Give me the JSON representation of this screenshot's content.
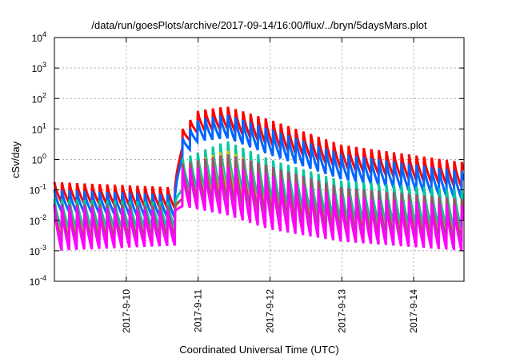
{
  "chart_data": {
    "type": "line",
    "title": "/data/run/goesPlots/archive/2017-09-14/16:00/flux/../bryn/5daysMars.plot",
    "xlabel": "Coordinated Universal Time (UTC)",
    "ylabel": "cSv/day",
    "yscale": "log",
    "ylim": [
      0.0001,
      10000
    ],
    "y_ticks": [
      {
        "base": "10",
        "exp": "4",
        "value": 10000
      },
      {
        "base": "10",
        "exp": "3",
        "value": 1000
      },
      {
        "base": "10",
        "exp": "2",
        "value": 100
      },
      {
        "base": "10",
        "exp": "1",
        "value": 10
      },
      {
        "base": "10",
        "exp": "0",
        "value": 1
      },
      {
        "base": "10",
        "exp": "-1",
        "value": 0.1
      },
      {
        "base": "10",
        "exp": "-2",
        "value": 0.01
      },
      {
        "base": "10",
        "exp": "-3",
        "value": 0.001
      },
      {
        "base": "10",
        "exp": "-4",
        "value": 0.0001
      }
    ],
    "x_unit": "days since 2017-09-09 00:00 UTC",
    "xlim": [
      0,
      5.7
    ],
    "x_ticks": [
      {
        "label": "2017-9-10",
        "value": 1
      },
      {
        "label": "2017-9-11",
        "value": 2
      },
      {
        "label": "2017-9-12",
        "value": 3
      },
      {
        "label": "2017-9-13",
        "value": 4
      },
      {
        "label": "2017-9-14",
        "value": 5
      }
    ],
    "grid": true,
    "sawtooth_cycle_days": 0.105,
    "series": [
      {
        "name": "series-red",
        "color": "#ff0000",
        "envelope": [
          [
            0,
            0.18,
            0.04
          ],
          [
            1.7,
            0.12,
            0.025
          ],
          [
            1.75,
            8,
            2
          ],
          [
            2.0,
            40,
            8
          ],
          [
            2.4,
            55,
            10
          ],
          [
            3.0,
            20,
            3
          ],
          [
            4.0,
            3,
            0.5
          ],
          [
            5.7,
            0.8,
            0.12
          ]
        ]
      },
      {
        "name": "series-blue",
        "color": "#0066ff",
        "envelope": [
          [
            0,
            0.1,
            0.02
          ],
          [
            1.7,
            0.07,
            0.012
          ],
          [
            1.75,
            4,
            1
          ],
          [
            2.0,
            20,
            4
          ],
          [
            2.4,
            30,
            5
          ],
          [
            3.0,
            10,
            1.4
          ],
          [
            4.0,
            1.5,
            0.22
          ],
          [
            5.7,
            0.4,
            0.05
          ]
        ]
      },
      {
        "name": "series-green",
        "color": "#00c8a0",
        "envelope": [
          [
            0,
            0.05,
            0.005
          ],
          [
            1.7,
            0.04,
            0.006
          ],
          [
            1.75,
            1,
            0.1
          ],
          [
            2.4,
            4,
            0.12
          ],
          [
            3.0,
            1,
            0.04
          ],
          [
            4.0,
            0.2,
            0.01
          ],
          [
            5.7,
            0.1,
            0.005
          ]
        ]
      },
      {
        "name": "series-yellow",
        "color": "#e0c000",
        "envelope": [
          [
            0,
            0.03,
            0.003
          ],
          [
            1.7,
            0.025,
            0.003
          ],
          [
            1.75,
            0.6,
            0.05
          ],
          [
            2.4,
            2,
            0.06
          ],
          [
            3.0,
            0.5,
            0.02
          ],
          [
            4.0,
            0.1,
            0.005
          ],
          [
            5.7,
            0.05,
            0.0025
          ]
        ]
      },
      {
        "name": "series-brown",
        "color": "#a05070",
        "envelope": [
          [
            0,
            0.035,
            0.002
          ],
          [
            1.7,
            0.03,
            0.003
          ],
          [
            1.75,
            0.7,
            0.05
          ],
          [
            2.4,
            1.5,
            0.04
          ],
          [
            3.0,
            0.6,
            0.015
          ],
          [
            4.0,
            0.12,
            0.004
          ],
          [
            5.7,
            0.05,
            0.002
          ]
        ]
      },
      {
        "name": "series-magenta",
        "color": "#ff00ff",
        "envelope": [
          [
            0,
            0.03,
            0.001
          ],
          [
            1.7,
            0.02,
            0.0015
          ],
          [
            1.75,
            0.5,
            0.03
          ],
          [
            2.4,
            0.6,
            0.015
          ],
          [
            3.0,
            0.3,
            0.005
          ],
          [
            4.0,
            0.06,
            0.002
          ],
          [
            5.7,
            0.03,
            0.001
          ]
        ]
      }
    ]
  }
}
